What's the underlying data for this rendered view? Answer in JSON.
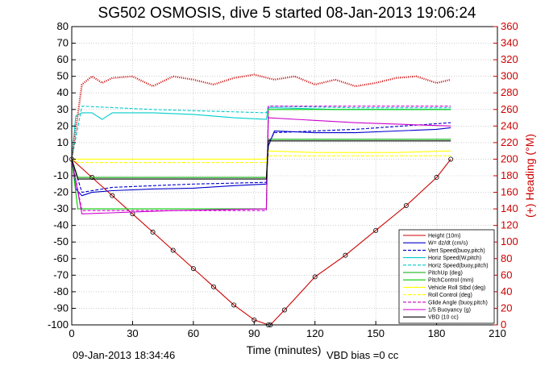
{
  "chart_data": {
    "type": "line",
    "title": "SG502 OSMOSIS, dive 5 started 08-Jan-2013 19:06:24",
    "xlabel": "Time (minutes)",
    "ylabel_right": "(+) Heading (°M)",
    "xlim": [
      0,
      210
    ],
    "ylim": [
      -100,
      80
    ],
    "ylim_right": [
      0,
      360
    ],
    "xticks": [
      0,
      30,
      60,
      90,
      120,
      150,
      180,
      210
    ],
    "yticks": [
      80,
      70,
      60,
      50,
      40,
      30,
      20,
      10,
      0,
      -10,
      -20,
      -30,
      -40,
      -50,
      -60,
      -70,
      -80,
      -90,
      -100
    ],
    "yticks_right": [
      360,
      340,
      320,
      300,
      280,
      260,
      240,
      220,
      200,
      180,
      160,
      140,
      120,
      100,
      80,
      60,
      40,
      20,
      0
    ],
    "grid": true,
    "legend_position": "bottom-right",
    "footer_left": "09-Jan-2013 18:34:46",
    "footer_right": "VBD bias =0 cc",
    "series": [
      {
        "name": "Height (10m)",
        "color": "#cc0000",
        "style": "solid",
        "marker": "dot",
        "x": [
          0,
          10,
          20,
          30,
          40,
          50,
          60,
          70,
          80,
          90,
          97,
          98,
          105,
          120,
          135,
          150,
          165,
          180,
          187
        ],
        "y": [
          0,
          -11,
          -22,
          -33,
          -44,
          -55,
          -66,
          -77,
          -88,
          -97,
          -100,
          -100,
          -91,
          -71,
          -58,
          -43,
          -28,
          -11,
          0
        ]
      },
      {
        "name": "W= dz/dt (cm/s)",
        "color": "#0000cc",
        "style": "solid",
        "x": [
          0,
          2,
          5,
          10,
          20,
          40,
          60,
          80,
          96,
          97,
          100,
          120,
          140,
          160,
          180,
          187
        ],
        "y": [
          0,
          -18,
          -22,
          -20,
          -19,
          -18,
          -17.5,
          -16,
          -15,
          8,
          17,
          16,
          16,
          17,
          18,
          19
        ]
      },
      {
        "name": "Vert Speed(buoy,pitch)",
        "color": "#0000cc",
        "style": "dashed",
        "x": [
          0,
          5,
          20,
          60,
          96,
          97,
          100,
          140,
          187
        ],
        "y": [
          0,
          -20,
          -17,
          -15,
          -14,
          10,
          16,
          18,
          22
        ]
      },
      {
        "name": "Horiz Speed(W,pitch)",
        "color": "#00cccc",
        "style": "solid",
        "x": [
          0,
          2,
          5,
          10,
          15,
          20,
          40,
          60,
          80,
          96,
          97,
          100,
          130,
          160,
          187
        ],
        "y": [
          0,
          26,
          28,
          28,
          24,
          28,
          28,
          27,
          25,
          24,
          31,
          31,
          30,
          30,
          30
        ]
      },
      {
        "name": "Horiz Speed(buoy,pitch)",
        "color": "#00cccc",
        "style": "dashed",
        "x": [
          0,
          5,
          40,
          96,
          97,
          140,
          187
        ],
        "y": [
          0,
          32,
          30,
          28,
          32,
          31,
          31
        ]
      },
      {
        "name": "PitchUp (deg)",
        "color": "#00aa00",
        "style": "solid",
        "x": [
          0,
          3,
          96,
          97,
          187
        ],
        "y": [
          0,
          -11,
          -11,
          12,
          12
        ]
      },
      {
        "name": "PitchControl (mm)",
        "color": "#00cc00",
        "style": "solid",
        "x": [
          0,
          3,
          96,
          97,
          187
        ],
        "y": [
          0,
          -30,
          -30,
          30,
          30
        ]
      },
      {
        "name": "Vehicle Roll Stbd (deg)",
        "color": "#ffff00",
        "style": "solid",
        "x": [
          0,
          3,
          20,
          60,
          96,
          97,
          120,
          160,
          187
        ],
        "y": [
          0,
          0,
          0,
          0,
          0,
          5,
          4,
          4,
          5
        ]
      },
      {
        "name": "Roll Control (deg)",
        "color": "#ffff00",
        "style": "dashed",
        "x": [
          0,
          3,
          96,
          97,
          187
        ],
        "y": [
          0,
          -2,
          -2,
          2,
          2
        ]
      },
      {
        "name": "Glide Angle (buoy,pitch)",
        "color": "#cc00cc",
        "style": "dashed",
        "x": [
          0,
          5,
          96,
          97,
          187
        ],
        "y": [
          0,
          -31,
          -31,
          32,
          32
        ]
      },
      {
        "name": "1/5 Buoyancy (g)",
        "color": "#cc00cc",
        "style": "solid",
        "x": [
          0,
          5,
          50,
          96,
          97,
          140,
          187
        ],
        "y": [
          0,
          -33,
          -31,
          -30,
          25,
          22,
          20
        ]
      },
      {
        "name": "VBD (10 cc)",
        "color": "#000000",
        "style": "solid",
        "x": [
          0,
          3,
          96,
          97,
          187
        ],
        "y": [
          0,
          -12,
          -12,
          11,
          11
        ]
      },
      {
        "name": "Heading",
        "color": "#cc0000",
        "style": "dotted",
        "axis": "right",
        "x": [
          0,
          5,
          10,
          15,
          20,
          30,
          40,
          50,
          60,
          70,
          80,
          90,
          100,
          110,
          120,
          130,
          140,
          150,
          160,
          170,
          180,
          187
        ],
        "y": [
          200,
          290,
          300,
          292,
          298,
          300,
          288,
          300,
          296,
          290,
          298,
          302,
          296,
          300,
          290,
          296,
          288,
          292,
          298,
          300,
          292,
          296
        ]
      }
    ]
  }
}
